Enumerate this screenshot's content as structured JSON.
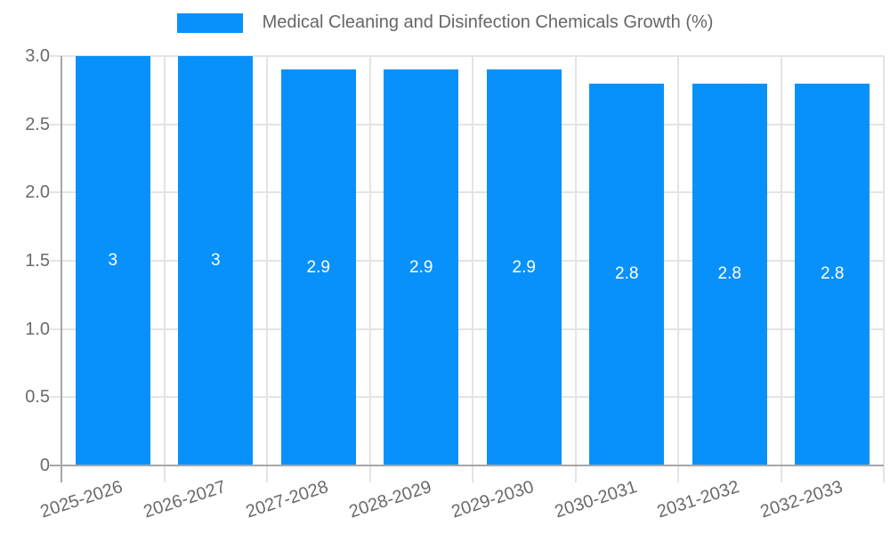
{
  "legend": {
    "label": "Medical Cleaning and Disinfection Chemicals Growth (%)"
  },
  "chart_data": {
    "type": "bar",
    "title": "Medical Cleaning and Disinfection Chemicals Growth (%)",
    "categories": [
      "2025-2026",
      "2026-2027",
      "2027-2028",
      "2028-2029",
      "2029-2030",
      "2030-2031",
      "2031-2032",
      "2032-2033"
    ],
    "values": [
      3,
      3,
      2.9,
      2.9,
      2.9,
      2.8,
      2.8,
      2.8
    ],
    "bar_labels": [
      "3",
      "3",
      "2.9",
      "2.9",
      "2.9",
      "2.8",
      "2.8",
      "2.8"
    ],
    "y_ticks": [
      "0",
      "0.5",
      "1.0",
      "1.5",
      "2.0",
      "2.5",
      "3.0"
    ],
    "ylim": [
      0,
      3.0
    ],
    "xlabel": "",
    "ylabel": "",
    "grid": true,
    "legend_position": "top",
    "colors": {
      "bar": "#0991fb",
      "tick_text": "#6b6b6b",
      "legend_text": "#666666",
      "grid": "#e4e4e4",
      "axis": "#a6a6a6",
      "bar_label_text": "#ffffff"
    }
  }
}
